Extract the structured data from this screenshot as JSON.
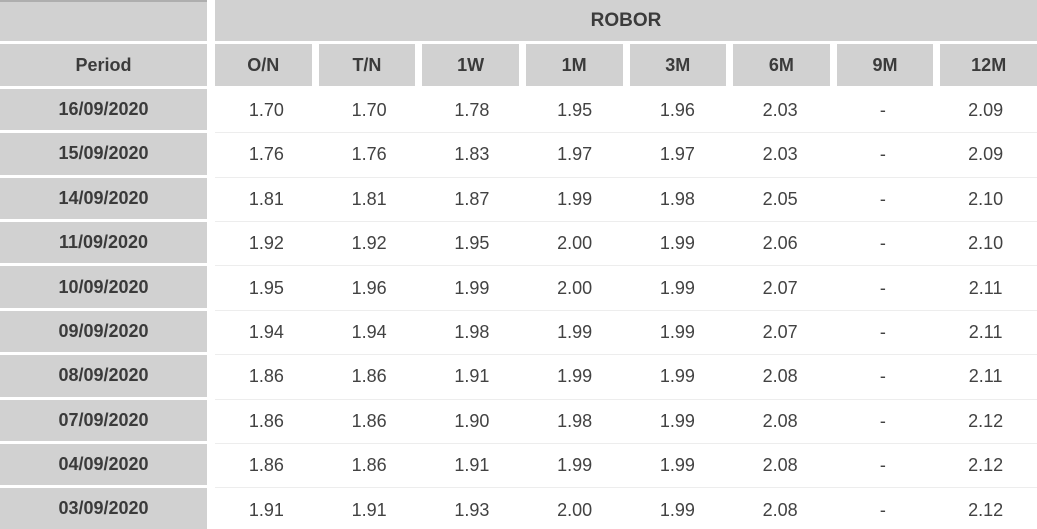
{
  "table": {
    "group_header": "ROBOR",
    "period_header": "Period",
    "tenor_headers": [
      "O/N",
      "T/N",
      "1W",
      "1M",
      "3M",
      "6M",
      "9M",
      "12M"
    ],
    "rows": [
      {
        "period": "16/09/2020",
        "values": [
          "1.70",
          "1.70",
          "1.78",
          "1.95",
          "1.96",
          "2.03",
          "-",
          "2.09"
        ]
      },
      {
        "period": "15/09/2020",
        "values": [
          "1.76",
          "1.76",
          "1.83",
          "1.97",
          "1.97",
          "2.03",
          "-",
          "2.09"
        ]
      },
      {
        "period": "14/09/2020",
        "values": [
          "1.81",
          "1.81",
          "1.87",
          "1.99",
          "1.98",
          "2.05",
          "-",
          "2.10"
        ]
      },
      {
        "period": "11/09/2020",
        "values": [
          "1.92",
          "1.92",
          "1.95",
          "2.00",
          "1.99",
          "2.06",
          "-",
          "2.10"
        ]
      },
      {
        "period": "10/09/2020",
        "values": [
          "1.95",
          "1.96",
          "1.99",
          "2.00",
          "1.99",
          "2.07",
          "-",
          "2.11"
        ]
      },
      {
        "period": "09/09/2020",
        "values": [
          "1.94",
          "1.94",
          "1.98",
          "1.99",
          "1.99",
          "2.07",
          "-",
          "2.11"
        ]
      },
      {
        "period": "08/09/2020",
        "values": [
          "1.86",
          "1.86",
          "1.91",
          "1.99",
          "1.99",
          "2.08",
          "-",
          "2.11"
        ]
      },
      {
        "period": "07/09/2020",
        "values": [
          "1.86",
          "1.86",
          "1.90",
          "1.98",
          "1.99",
          "2.08",
          "-",
          "2.12"
        ]
      },
      {
        "period": "04/09/2020",
        "values": [
          "1.86",
          "1.86",
          "1.91",
          "1.99",
          "1.99",
          "2.08",
          "-",
          "2.12"
        ]
      },
      {
        "period": "03/09/2020",
        "values": [
          "1.91",
          "1.91",
          "1.93",
          "2.00",
          "1.99",
          "2.08",
          "-",
          "2.12"
        ]
      }
    ]
  },
  "colors": {
    "header_bg": "#d1d1d1",
    "header_text": "#3b3b3b",
    "value_text": "#424242",
    "cell_gap": "#ffffff",
    "row_divider": "#ededed",
    "top_accent": "#aeaeae"
  },
  "chart_data": {
    "type": "table",
    "title": "ROBOR",
    "columns": [
      "Period",
      "O/N",
      "T/N",
      "1W",
      "1M",
      "3M",
      "6M",
      "9M",
      "12M"
    ],
    "rows": [
      [
        "16/09/2020",
        "1.70",
        "1.70",
        "1.78",
        "1.95",
        "1.96",
        "2.03",
        "-",
        "2.09"
      ],
      [
        "15/09/2020",
        "1.76",
        "1.76",
        "1.83",
        "1.97",
        "1.97",
        "2.03",
        "-",
        "2.09"
      ],
      [
        "14/09/2020",
        "1.81",
        "1.81",
        "1.87",
        "1.99",
        "1.98",
        "2.05",
        "-",
        "2.10"
      ],
      [
        "11/09/2020",
        "1.92",
        "1.92",
        "1.95",
        "2.00",
        "1.99",
        "2.06",
        "-",
        "2.10"
      ],
      [
        "10/09/2020",
        "1.95",
        "1.96",
        "1.99",
        "2.00",
        "1.99",
        "2.07",
        "-",
        "2.11"
      ],
      [
        "09/09/2020",
        "1.94",
        "1.94",
        "1.98",
        "1.99",
        "1.99",
        "2.07",
        "-",
        "2.11"
      ],
      [
        "08/09/2020",
        "1.86",
        "1.86",
        "1.91",
        "1.99",
        "1.99",
        "2.08",
        "-",
        "2.11"
      ],
      [
        "07/09/2020",
        "1.86",
        "1.86",
        "1.90",
        "1.98",
        "1.99",
        "2.08",
        "-",
        "2.12"
      ],
      [
        "04/09/2020",
        "1.86",
        "1.86",
        "1.91",
        "1.99",
        "1.99",
        "2.08",
        "-",
        "2.12"
      ],
      [
        "03/09/2020",
        "1.91",
        "1.91",
        "1.93",
        "2.00",
        "1.99",
        "2.08",
        "-",
        "2.12"
      ]
    ]
  }
}
